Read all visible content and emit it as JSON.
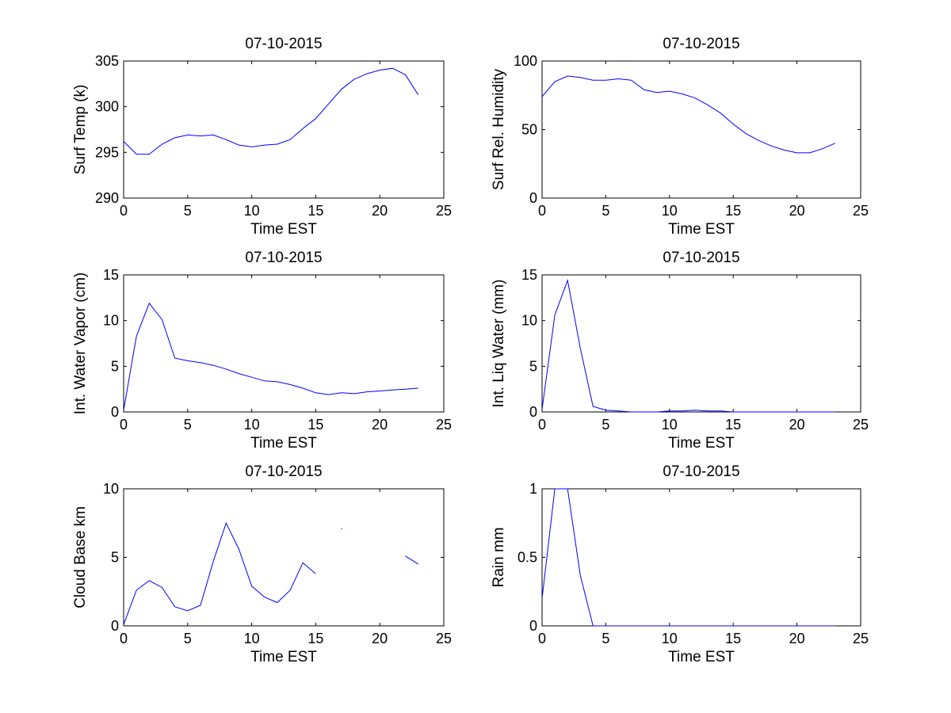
{
  "chart_data": [
    {
      "type": "line",
      "title": "07-10-2015",
      "xlabel": "Time EST",
      "ylabel": "Surf Temp (k)",
      "xlim": [
        0,
        25
      ],
      "ylim": [
        290,
        305
      ],
      "xticks": [
        0,
        5,
        10,
        15,
        20,
        25
      ],
      "yticks": [
        290,
        295,
        300,
        305
      ],
      "grid": false,
      "series": [
        {
          "name": "Surf Temp",
          "color": "#0000ff",
          "x": [
            0,
            1,
            2,
            3,
            4,
            5,
            6,
            7,
            8,
            9,
            10,
            11,
            12,
            13,
            14,
            15,
            16,
            17,
            18,
            19,
            20,
            21,
            22,
            23
          ],
          "y": [
            296.2,
            294.8,
            294.8,
            295.9,
            296.6,
            296.9,
            296.8,
            296.9,
            296.4,
            295.8,
            295.6,
            295.8,
            295.9,
            296.4,
            297.6,
            298.7,
            300.3,
            301.9,
            303.0,
            303.6,
            304.0,
            304.2,
            303.5,
            301.3
          ]
        }
      ]
    },
    {
      "type": "line",
      "title": "07-10-2015",
      "xlabel": "Time EST",
      "ylabel": "Surf Rel. Humidity",
      "xlim": [
        0,
        25
      ],
      "ylim": [
        0,
        100
      ],
      "xticks": [
        0,
        5,
        10,
        15,
        20,
        25
      ],
      "yticks": [
        0,
        50,
        100
      ],
      "grid": false,
      "series": [
        {
          "name": "Surf Rel. Humidity",
          "color": "#0000ff",
          "x": [
            0,
            1,
            2,
            3,
            4,
            5,
            6,
            7,
            8,
            9,
            10,
            11,
            12,
            13,
            14,
            15,
            16,
            17,
            18,
            19,
            20,
            21,
            22,
            23
          ],
          "y": [
            74,
            85,
            89,
            88,
            86,
            86,
            87,
            86,
            79,
            77,
            78,
            76,
            73,
            68,
            62,
            54,
            47,
            42,
            38,
            35,
            33,
            33,
            36,
            40
          ]
        }
      ]
    },
    {
      "type": "line",
      "title": "07-10-2015",
      "xlabel": "Time EST",
      "ylabel": "Int. Water Vapor (cm)",
      "xlim": [
        0,
        25
      ],
      "ylim": [
        0,
        15
      ],
      "xticks": [
        0,
        5,
        10,
        15,
        20,
        25
      ],
      "yticks": [
        0,
        5,
        10,
        15
      ],
      "grid": false,
      "series": [
        {
          "name": "Int. Water Vapor",
          "color": "#0000ff",
          "x": [
            0,
            1,
            2,
            3,
            4,
            5,
            6,
            7,
            8,
            9,
            10,
            11,
            12,
            13,
            14,
            15,
            16,
            17,
            18,
            19,
            20,
            21,
            22,
            23
          ],
          "y": [
            0.2,
            8.3,
            11.9,
            10.1,
            5.9,
            5.6,
            5.4,
            5.1,
            4.7,
            4.2,
            3.8,
            3.4,
            3.3,
            3.0,
            2.6,
            2.1,
            1.9,
            2.1,
            2.0,
            2.2,
            2.3,
            2.4,
            2.5,
            2.6
          ]
        }
      ]
    },
    {
      "type": "line",
      "title": "07-10-2015",
      "xlabel": "Time EST",
      "ylabel": "Int. Liq Water (mm)",
      "xlim": [
        0,
        25
      ],
      "ylim": [
        0,
        15
      ],
      "xticks": [
        0,
        5,
        10,
        15,
        20,
        25
      ],
      "yticks": [
        0,
        5,
        10,
        15
      ],
      "grid": false,
      "series": [
        {
          "name": "Int. Liq Water",
          "color": "#0000ff",
          "x": [
            0,
            1,
            2,
            3,
            4,
            5,
            6,
            7,
            8,
            9,
            10,
            11,
            12,
            13,
            14,
            15,
            16,
            17,
            18,
            19,
            20,
            21,
            22,
            23
          ],
          "y": [
            0.3,
            10.6,
            14.4,
            7.0,
            0.6,
            0.2,
            0.1,
            0.0,
            0.0,
            0.0,
            0.1,
            0.1,
            0.2,
            0.1,
            0.1,
            0.0,
            0.0,
            0.0,
            0.0,
            0.0,
            0.0,
            0.0,
            0.0,
            0.0
          ]
        }
      ]
    },
    {
      "type": "line",
      "title": "07-10-2015",
      "xlabel": "Time EST",
      "ylabel": "Cloud Base km",
      "xlim": [
        0,
        25
      ],
      "ylim": [
        0,
        10
      ],
      "xticks": [
        0,
        5,
        10,
        15,
        20,
        25
      ],
      "yticks": [
        0,
        5,
        10
      ],
      "grid": false,
      "series": [
        {
          "name": "Cloud Base",
          "color": "#0000ff",
          "x": [
            0,
            1,
            2,
            3,
            4,
            5,
            6,
            7,
            8,
            9,
            10,
            11,
            12,
            13,
            14,
            15,
            16,
            17,
            18,
            19,
            20,
            21,
            22,
            23
          ],
          "y": [
            0.1,
            2.6,
            3.3,
            2.8,
            1.4,
            1.1,
            1.5,
            4.7,
            7.5,
            5.6,
            2.9,
            2.1,
            1.7,
            2.6,
            4.6,
            3.8,
            null,
            7.1,
            null,
            null,
            null,
            null,
            5.1,
            4.5
          ]
        }
      ]
    },
    {
      "type": "line",
      "title": "07-10-2015",
      "xlabel": "Time EST",
      "ylabel": "Rain mm",
      "xlim": [
        0,
        25
      ],
      "ylim": [
        0,
        1
      ],
      "xticks": [
        0,
        5,
        10,
        15,
        20,
        25
      ],
      "yticks": [
        0,
        0.5,
        1
      ],
      "grid": false,
      "series": [
        {
          "name": "Rain",
          "color": "#0000ff",
          "x": [
            0,
            1,
            2,
            3,
            4,
            5,
            6,
            7,
            8,
            9,
            10,
            11,
            12,
            13,
            14,
            15,
            16,
            17,
            18,
            19,
            20,
            21,
            22,
            23
          ],
          "y": [
            0.2,
            1.0,
            1.0,
            0.37,
            0.0,
            0.0,
            0.0,
            0.0,
            0.0,
            0.0,
            0.0,
            0.0,
            0.0,
            0.0,
            0.0,
            0.0,
            0.0,
            0.0,
            0.0,
            0.0,
            0.0,
            0.0,
            0.0,
            0.0
          ]
        }
      ]
    }
  ]
}
